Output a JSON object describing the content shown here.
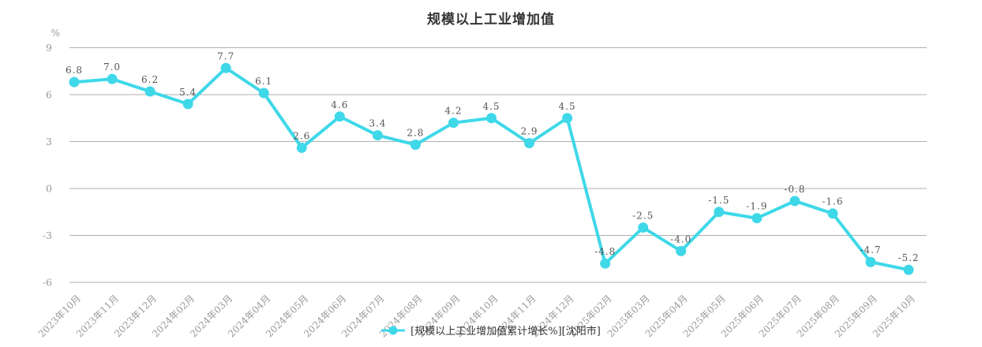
{
  "title": "规模以上工业增加值",
  "legend": {
    "label": "[规模以上工业增加值累计增长%][沈阳市]"
  },
  "colors": {
    "series": "#3fd8e8",
    "grid": "#b0b0b0",
    "axis_label": "#999999",
    "value_label": "#555555",
    "title": "#333333",
    "legend_text": "#333333",
    "background": "#ffffff"
  },
  "chart_data": {
    "type": "line",
    "title": "规模以上工业增加值",
    "ylabel": "%",
    "ylim": [
      -6,
      9
    ],
    "yticks": [
      9,
      6,
      3,
      0,
      -3,
      -6
    ],
    "grid": true,
    "legend_position": "bottom",
    "value_labels": true,
    "categories": [
      "2023年10月",
      "2023年11月",
      "2023年12月",
      "2024年02月",
      "2024年03月",
      "2024年04月",
      "2024年05月",
      "2024年06月",
      "2024年07月",
      "2024年08月",
      "2024年09月",
      "2024年10月",
      "2024年11月",
      "2024年12月",
      "2025年02月",
      "2025年03月",
      "2025年04月",
      "2025年05月",
      "2025年06月",
      "2025年07月",
      "2025年08月",
      "2025年09月",
      "2025年10月"
    ],
    "series": [
      {
        "name": "规模以上工业增加值累计增长%",
        "region": "沈阳市",
        "values": [
          6.8,
          7.0,
          6.2,
          5.4,
          7.7,
          6.1,
          2.6,
          4.6,
          3.4,
          2.8,
          4.2,
          4.5,
          2.9,
          4.5,
          -4.8,
          -2.5,
          -4.0,
          -1.5,
          -1.9,
          -0.8,
          -1.6,
          -4.7,
          -5.2
        ]
      }
    ]
  }
}
